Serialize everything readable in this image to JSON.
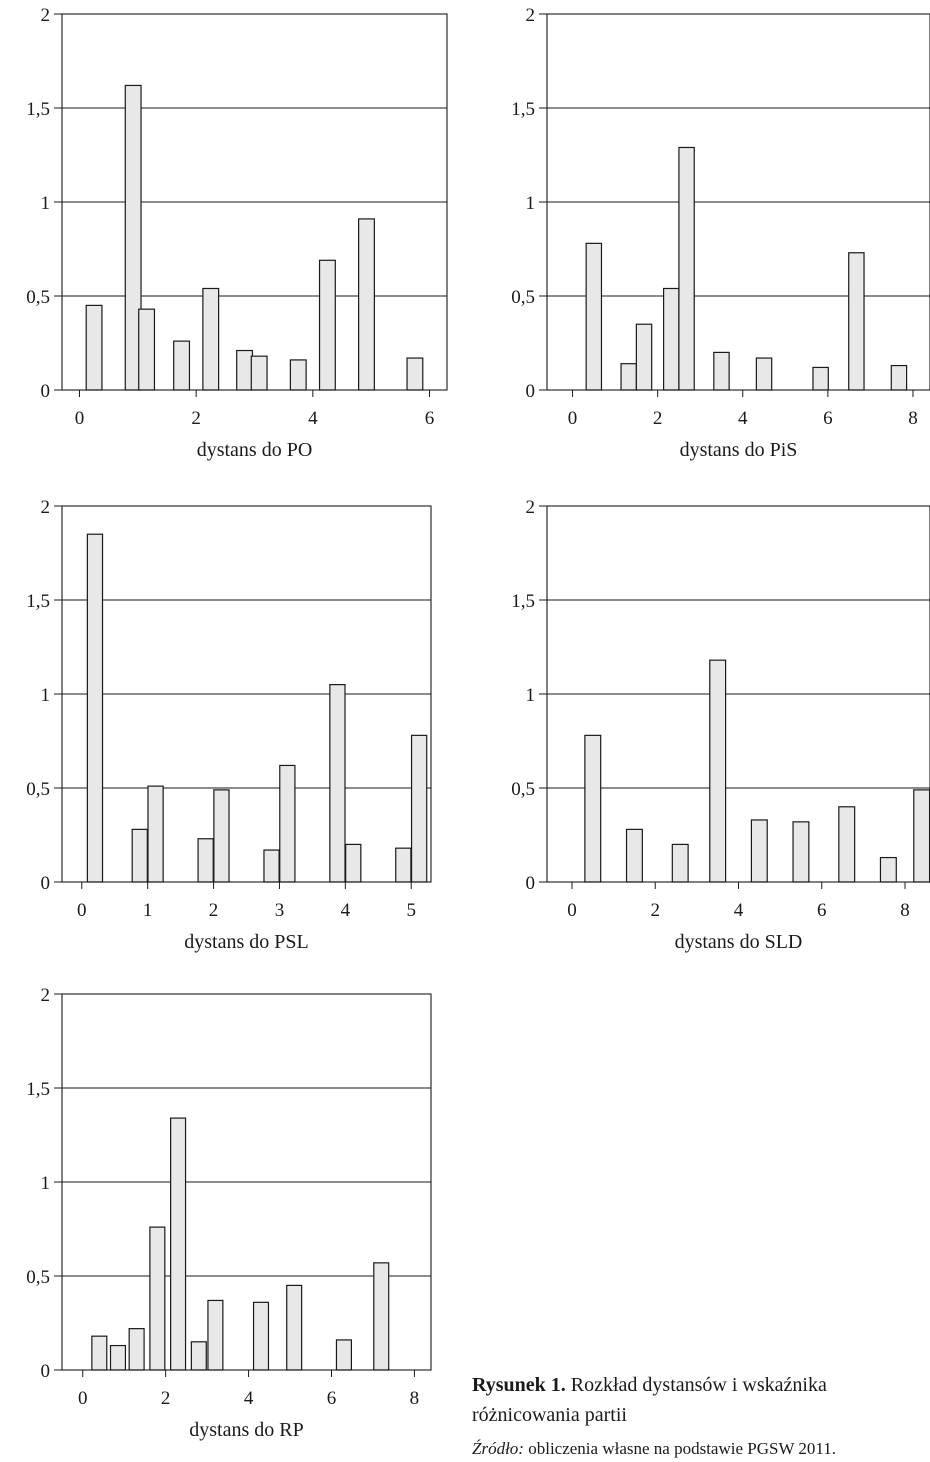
{
  "chart_data": [
    {
      "id": "po",
      "type": "bar",
      "xlabel": "dystans do PO",
      "ylim": [
        0,
        2
      ],
      "xlim": [
        -0.3,
        6.3
      ],
      "xticks": [
        "0",
        "2",
        "4",
        "6"
      ],
      "xtick_values": [
        0,
        2,
        4,
        6
      ],
      "yticks": [
        "0",
        "0,5",
        "1",
        "1,5",
        "2"
      ],
      "ytick_values": [
        0,
        0.5,
        1,
        1.5,
        2
      ],
      "grid": true,
      "bar_width": 0.27,
      "x": [
        0.25,
        0.92,
        1.15,
        1.75,
        2.25,
        2.83,
        3.08,
        3.75,
        4.25,
        4.92,
        5.75
      ],
      "values": [
        0.45,
        1.62,
        0.43,
        0.26,
        0.54,
        0.21,
        0.18,
        0.16,
        0.69,
        0.91,
        0.17
      ]
    },
    {
      "id": "pis",
      "type": "bar",
      "xlabel": "dystans do PiS",
      "ylim": [
        0,
        2
      ],
      "xlim": [
        -0.6,
        8.4
      ],
      "xticks": [
        "0",
        "2",
        "4",
        "6",
        "8"
      ],
      "xtick_values": [
        0,
        2,
        4,
        6,
        8
      ],
      "yticks": [
        "0",
        "0,5",
        "1",
        "1,5",
        "2"
      ],
      "ytick_values": [
        0,
        0.5,
        1,
        1.5,
        2
      ],
      "grid": true,
      "bar_width": 0.36,
      "x": [
        0.5,
        1.32,
        1.68,
        2.32,
        2.68,
        3.5,
        4.5,
        5.83,
        6.67,
        7.67
      ],
      "values": [
        0.78,
        0.14,
        0.35,
        0.54,
        1.29,
        0.2,
        0.17,
        0.12,
        0.73,
        0.13
      ]
    },
    {
      "id": "psl",
      "type": "bar",
      "xlabel": "dystans do PSL",
      "ylim": [
        0,
        2
      ],
      "xlim": [
        -0.3,
        5.3
      ],
      "xticks": [
        "0",
        "1",
        "2",
        "3",
        "4",
        "5"
      ],
      "xtick_values": [
        0,
        1,
        2,
        3,
        4,
        5
      ],
      "yticks": [
        "0",
        "0,5",
        "1",
        "1,5",
        "2"
      ],
      "ytick_values": [
        0,
        0.5,
        1,
        1.5,
        2
      ],
      "grid": true,
      "bar_width": 0.23,
      "x": [
        0.2,
        0.88,
        1.12,
        1.88,
        2.12,
        2.88,
        3.12,
        3.88,
        4.12,
        4.88,
        5.12
      ],
      "values": [
        1.85,
        0.28,
        0.51,
        0.23,
        0.49,
        0.17,
        0.62,
        1.05,
        0.2,
        0.18,
        0.78
      ]
    },
    {
      "id": "sld",
      "type": "bar",
      "xlabel": "dystans do SLD",
      "ylim": [
        0,
        2
      ],
      "xlim": [
        -0.6,
        8.6
      ],
      "xticks": [
        "0",
        "2",
        "4",
        "6",
        "8"
      ],
      "xtick_values": [
        0,
        2,
        4,
        6,
        8
      ],
      "yticks": [
        "0",
        "0,5",
        "1",
        "1,5",
        "2"
      ],
      "ytick_values": [
        0,
        0.5,
        1,
        1.5,
        2
      ],
      "grid": true,
      "bar_width": 0.38,
      "x": [
        0.5,
        1.5,
        2.6,
        3.5,
        4.5,
        5.5,
        6.6,
        7.6,
        8.4
      ],
      "values": [
        0.78,
        0.28,
        0.2,
        1.18,
        0.33,
        0.32,
        0.4,
        0.13,
        0.49
      ]
    },
    {
      "id": "rp",
      "type": "bar",
      "xlabel": "dystans do RP",
      "ylim": [
        0,
        2
      ],
      "xlim": [
        -0.5,
        8.4
      ],
      "xticks": [
        "0",
        "2",
        "4",
        "6",
        "8"
      ],
      "xtick_values": [
        0,
        2,
        4,
        6,
        8
      ],
      "yticks": [
        "0",
        "0,5",
        "1",
        "1,5",
        "2"
      ],
      "ytick_values": [
        0,
        0.5,
        1,
        1.5,
        2
      ],
      "grid": true,
      "bar_width": 0.36,
      "x": [
        0.4,
        0.85,
        1.3,
        1.8,
        2.3,
        2.8,
        3.2,
        4.3,
        5.1,
        6.3,
        7.2
      ],
      "values": [
        0.18,
        0.13,
        0.22,
        0.76,
        1.34,
        0.15,
        0.37,
        0.36,
        0.45,
        0.16,
        0.57
      ]
    }
  ],
  "caption": {
    "label": "Rysunek 1.",
    "text": " Rozkład dystansów i wskaźnika różnicowania partii",
    "source_label": "Źródło:",
    "source_text": " obliczenia własne na podstawie PGSW 2011."
  }
}
